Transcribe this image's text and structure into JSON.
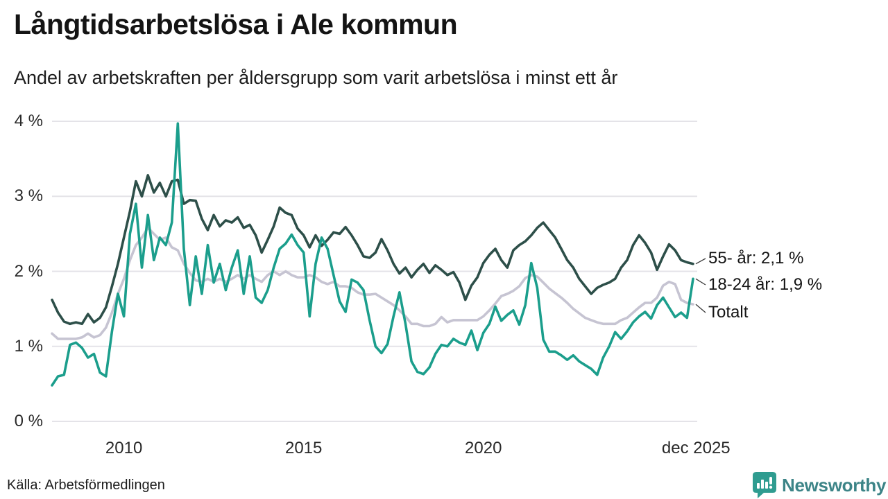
{
  "header": {
    "title": "Långtidsarbetslösa i Ale kommun",
    "subtitle": "Andel av arbetskraften per åldersgrupp som varit arbetslösa i minst ett år"
  },
  "footer": {
    "source": "Källa: Arbetsförmedlingen",
    "logo_text": "Newsworthy"
  },
  "colors": {
    "series_55": "#2d4f49",
    "series_18_24": "#1b9e8c",
    "series_total": "#c6c4d2",
    "gridline": "#e4e3e8",
    "connector": "#3a3a3a",
    "logo_badge": "#2f9c90",
    "logo_text": "#3c8487",
    "background": "#ffffff"
  },
  "chart_data": {
    "type": "line",
    "title": "Långtidsarbetslösa i Ale kommun",
    "subtitle": "Andel av arbetskraften per åldersgrupp som varit arbetslösa i minst ett år",
    "unit": "% av arbetskraften",
    "x_start": 2008.0,
    "x_step_months": 2,
    "xlim": [
      2008.0,
      2025.95
    ],
    "ylim": [
      0,
      4
    ],
    "grid": "horizontal",
    "legend_position": "end-labels-right",
    "y_ticks": [
      {
        "value": 0,
        "label": "0 %"
      },
      {
        "value": 1,
        "label": "1 %"
      },
      {
        "value": 2,
        "label": "2 %"
      },
      {
        "value": 3,
        "label": "3 %"
      },
      {
        "value": 4,
        "label": "4 %"
      }
    ],
    "x_ticks": [
      {
        "value": 2010.0,
        "label": "2010"
      },
      {
        "value": 2015.0,
        "label": "2015"
      },
      {
        "value": 2020.0,
        "label": "2020"
      },
      {
        "value": 2025.917,
        "label": "dec 2025"
      }
    ],
    "series": [
      {
        "name": "55- år",
        "end_label": "55- år: 2,1 %",
        "last_value_text": "2,1 %",
        "color": "#2d4f49",
        "values": [
          1.62,
          1.45,
          1.33,
          1.3,
          1.32,
          1.3,
          1.43,
          1.32,
          1.38,
          1.52,
          1.8,
          2.1,
          2.45,
          2.8,
          3.2,
          3.0,
          3.28,
          3.05,
          3.18,
          3.0,
          3.2,
          3.22,
          2.9,
          2.95,
          2.94,
          2.7,
          2.55,
          2.75,
          2.6,
          2.68,
          2.65,
          2.72,
          2.58,
          2.62,
          2.48,
          2.25,
          2.42,
          2.6,
          2.85,
          2.78,
          2.75,
          2.57,
          2.48,
          2.32,
          2.48,
          2.34,
          2.42,
          2.52,
          2.5,
          2.59,
          2.48,
          2.35,
          2.2,
          2.18,
          2.25,
          2.43,
          2.28,
          2.1,
          1.97,
          2.05,
          1.92,
          2.02,
          2.1,
          1.98,
          2.08,
          2.02,
          1.95,
          1.99,
          1.85,
          1.62,
          1.81,
          1.92,
          2.11,
          2.22,
          2.3,
          2.15,
          2.05,
          2.28,
          2.35,
          2.4,
          2.48,
          2.58,
          2.65,
          2.55,
          2.45,
          2.3,
          2.15,
          2.05,
          1.9,
          1.8,
          1.7,
          1.78,
          1.82,
          1.85,
          1.9,
          2.05,
          2.15,
          2.35,
          2.48,
          2.38,
          2.25,
          2.02,
          2.2,
          2.36,
          2.28,
          2.15,
          2.12,
          2.1
        ]
      },
      {
        "name": "18-24 år",
        "end_label": "18-24 år: 1,9 %",
        "last_value_text": "1,9 %",
        "color": "#1b9e8c",
        "values": [
          0.48,
          0.6,
          0.62,
          1.02,
          1.05,
          0.98,
          0.85,
          0.9,
          0.65,
          0.6,
          1.2,
          1.7,
          1.4,
          2.5,
          2.9,
          2.05,
          2.75,
          2.15,
          2.45,
          2.35,
          2.65,
          3.97,
          2.3,
          1.55,
          2.2,
          1.7,
          2.35,
          1.85,
          2.1,
          1.75,
          2.05,
          2.28,
          1.7,
          2.2,
          1.65,
          1.58,
          1.75,
          2.05,
          2.3,
          2.37,
          2.49,
          2.35,
          2.25,
          1.4,
          2.1,
          2.45,
          2.3,
          1.95,
          1.6,
          1.46,
          1.89,
          1.85,
          1.75,
          1.35,
          1.0,
          0.91,
          1.03,
          1.4,
          1.72,
          1.3,
          0.8,
          0.66,
          0.63,
          0.72,
          0.9,
          1.02,
          1.0,
          1.1,
          1.05,
          1.02,
          1.21,
          0.95,
          1.18,
          1.3,
          1.53,
          1.34,
          1.42,
          1.48,
          1.29,
          1.55,
          2.11,
          1.78,
          1.09,
          0.93,
          0.93,
          0.88,
          0.82,
          0.88,
          0.8,
          0.75,
          0.7,
          0.62,
          0.85,
          1.0,
          1.19,
          1.1,
          1.2,
          1.32,
          1.4,
          1.46,
          1.37,
          1.55,
          1.65,
          1.52,
          1.39,
          1.45,
          1.38,
          1.9
        ]
      },
      {
        "name": "Totalt",
        "end_label": "Totalt",
        "last_value_text": "",
        "color": "#c6c4d2",
        "values": [
          1.17,
          1.1,
          1.1,
          1.1,
          1.1,
          1.12,
          1.17,
          1.12,
          1.15,
          1.25,
          1.45,
          1.7,
          1.9,
          2.15,
          2.35,
          2.45,
          2.58,
          2.5,
          2.42,
          2.45,
          2.32,
          2.28,
          2.1,
          1.98,
          1.88,
          1.86,
          1.9,
          1.86,
          1.9,
          1.86,
          1.9,
          1.95,
          1.9,
          1.95,
          1.9,
          1.86,
          1.95,
          2.0,
          1.95,
          2.0,
          1.95,
          1.92,
          1.92,
          1.95,
          1.92,
          1.86,
          1.83,
          1.86,
          1.8,
          1.8,
          1.78,
          1.72,
          1.69,
          1.69,
          1.7,
          1.65,
          1.6,
          1.55,
          1.48,
          1.4,
          1.3,
          1.3,
          1.27,
          1.27,
          1.3,
          1.39,
          1.32,
          1.35,
          1.35,
          1.35,
          1.35,
          1.35,
          1.4,
          1.48,
          1.57,
          1.67,
          1.7,
          1.74,
          1.8,
          1.91,
          1.95,
          1.93,
          1.85,
          1.77,
          1.71,
          1.65,
          1.58,
          1.5,
          1.44,
          1.38,
          1.35,
          1.32,
          1.3,
          1.3,
          1.3,
          1.35,
          1.38,
          1.45,
          1.52,
          1.58,
          1.58,
          1.65,
          1.81,
          1.86,
          1.83,
          1.62,
          1.58,
          1.56
        ]
      }
    ]
  }
}
